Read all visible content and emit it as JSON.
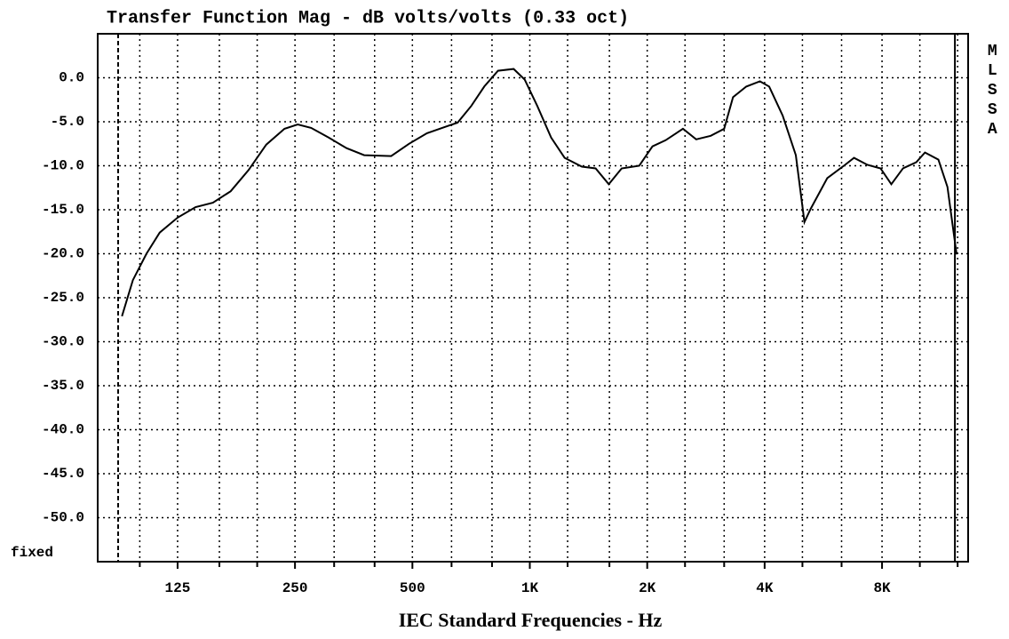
{
  "chart_data": {
    "type": "line",
    "title": "Transfer Function Mag - dB volts/volts (0.33 oct)",
    "x_label": "IEC Standard Frequencies - Hz",
    "side_label": "MLSSA",
    "corner_label": "fixed",
    "log_x": true,
    "grid": true,
    "xlim": [
      78,
      13300
    ],
    "ylim": [
      -55,
      5
    ],
    "xticks": [
      {
        "value": 125,
        "label": "125"
      },
      {
        "value": 250,
        "label": "250"
      },
      {
        "value": 500,
        "label": "500"
      },
      {
        "value": 1000,
        "label": "1K"
      },
      {
        "value": 2000,
        "label": "2K"
      },
      {
        "value": 4000,
        "label": "4K"
      },
      {
        "value": 8000,
        "label": "8K"
      }
    ],
    "x_grid": [
      100,
      160,
      200,
      315,
      400,
      630,
      800,
      1250,
      1600,
      2500,
      3150,
      5000,
      6300,
      10000,
      12500
    ],
    "markers": [
      88,
      12300
    ],
    "yticks": [
      {
        "value": 0,
        "label": "0.0"
      },
      {
        "value": -5,
        "label": "-5.0"
      },
      {
        "value": -10,
        "label": "-10.0"
      },
      {
        "value": -15,
        "label": "-15.0"
      },
      {
        "value": -20,
        "label": "-20.0"
      },
      {
        "value": -25,
        "label": "-25.0"
      },
      {
        "value": -30,
        "label": "-30.0"
      },
      {
        "value": -35,
        "label": "-35.0"
      },
      {
        "value": -40,
        "label": "-40.0"
      },
      {
        "value": -45,
        "label": "-45.0"
      },
      {
        "value": -50,
        "label": "-50.0"
      }
    ],
    "x": [
      90,
      96,
      104,
      112.5,
      125,
      139,
      154,
      171,
      190,
      211,
      235,
      254,
      275,
      305,
      339,
      376,
      441,
      490,
      545,
      605,
      653,
      708,
      764,
      829,
      909,
      970,
      1045,
      1134,
      1228,
      1360,
      1475,
      1594,
      1720,
      1908,
      2063,
      2230,
      2470,
      2670,
      2910,
      3150,
      3320,
      3590,
      3890,
      4110,
      4450,
      4810,
      5060,
      5250,
      5790,
      6430,
      6780,
      7340,
      7930,
      8450,
      9050,
      9790,
      10310,
      11160,
      11770,
      12420
    ],
    "series": [
      {
        "color": "#000000",
        "values": [
          -27.1,
          -23.0,
          -20.0,
          -17.6,
          -15.9,
          -14.7,
          -14.2,
          -12.9,
          -10.5,
          -7.6,
          -5.8,
          -5.3,
          -5.7,
          -6.8,
          -8.0,
          -8.8,
          -8.9,
          -7.5,
          -6.3,
          -5.6,
          -5.1,
          -3.2,
          -1.0,
          0.8,
          1.0,
          -0.2,
          -3.2,
          -6.8,
          -9.1,
          -10.1,
          -10.3,
          -12.1,
          -10.3,
          -10.0,
          -7.8,
          -7.1,
          -5.8,
          -7.0,
          -6.6,
          -5.8,
          -2.2,
          -1.0,
          -0.4,
          -1.0,
          -4.3,
          -8.8,
          -16.4,
          -14.9,
          -11.4,
          -9.9,
          -9.1,
          -9.9,
          -10.3,
          -12.1,
          -10.3,
          -9.6,
          -8.5,
          -9.3,
          -12.4,
          -20.0
        ]
      }
    ]
  }
}
